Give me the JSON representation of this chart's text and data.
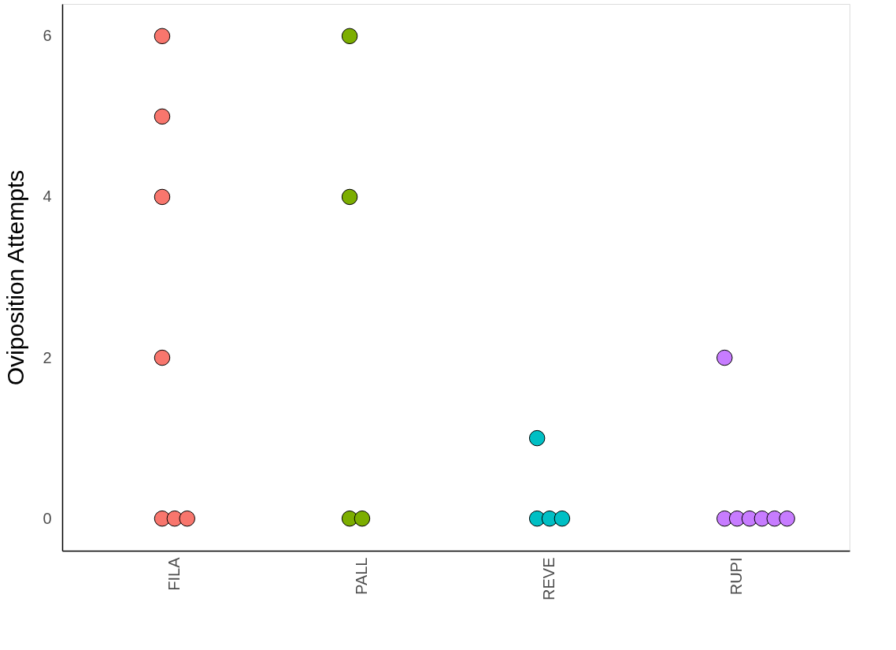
{
  "chart_data": {
    "type": "scatter",
    "ylabel": "Oviposition Attempts",
    "categories": [
      "FILA",
      "PALL",
      "REVE",
      "RUPI"
    ],
    "series": [
      {
        "color": "#f8766d",
        "x": [
          "FILA",
          "FILA",
          "FILA",
          "FILA",
          "FILA",
          "FILA",
          "FILA"
        ],
        "values": [
          6,
          5,
          4,
          2,
          0,
          0,
          0
        ]
      },
      {
        "color": "#7cae00",
        "x": [
          "PALL",
          "PALL",
          "PALL",
          "PALL"
        ],
        "values": [
          6,
          4,
          0,
          0
        ]
      },
      {
        "color": "#00bfc4",
        "x": [
          "REVE",
          "REVE",
          "REVE",
          "REVE"
        ],
        "values": [
          1,
          0,
          0,
          0
        ]
      },
      {
        "color": "#c77cff",
        "x": [
          "RUPI",
          "RUPI",
          "RUPI",
          "RUPI",
          "RUPI",
          "RUPI",
          "RUPI"
        ],
        "values": [
          2,
          0,
          0,
          0,
          0,
          0,
          0
        ]
      }
    ],
    "ylim": [
      -0.4,
      6.4
    ],
    "yticks": [
      0,
      2,
      4,
      6
    ],
    "grid": false,
    "legend": false,
    "marker": "circle"
  }
}
